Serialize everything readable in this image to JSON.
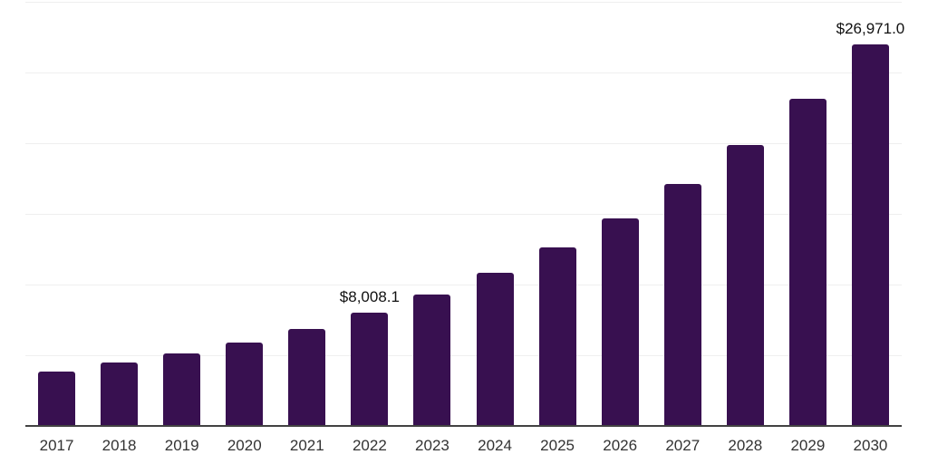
{
  "chart_data": {
    "type": "bar",
    "title": "",
    "xlabel": "",
    "ylabel": "",
    "categories": [
      "2017",
      "2018",
      "2019",
      "2020",
      "2021",
      "2022",
      "2023",
      "2024",
      "2025",
      "2026",
      "2027",
      "2028",
      "2029",
      "2030"
    ],
    "values": [
      3830,
      4460,
      5150,
      5910,
      6870,
      8008.1,
      9290,
      10840,
      12630,
      14670,
      17110,
      19890,
      23130,
      26971.0
    ],
    "data_labels": {
      "2022": "$8,008.1",
      "2030": "$26,971.0"
    },
    "ylim": [
      0,
      30000
    ],
    "gridline_step": 5000,
    "grid": true,
    "legend": false,
    "value_unit_hint": "$"
  },
  "colors": {
    "bar": "#381050",
    "grid": "#efefef",
    "axis": "#424242",
    "tick_label": "#333333",
    "data_label": "#111111",
    "background": "#ffffff"
  }
}
